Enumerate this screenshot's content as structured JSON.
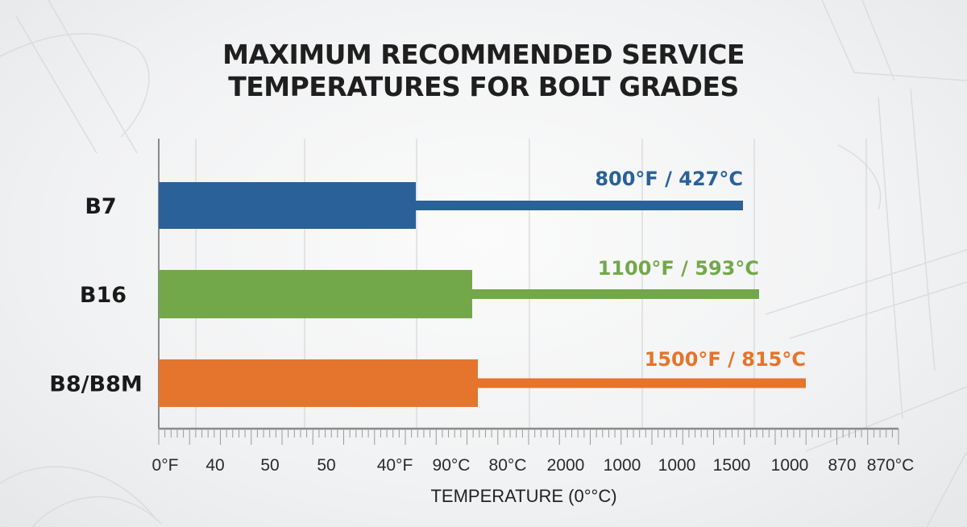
{
  "chart_data": {
    "type": "bar",
    "orientation": "horizontal",
    "title": "MAXIMUM RECOMMENDED SERVICE TEMPERATURES FOR BOLT GRADES",
    "title_lines": [
      "MAXIMUM RECOMMENDED SERVICE",
      "TEMPERATURES FOR BOLT GRADES"
    ],
    "categories": [
      "B7",
      "B16",
      "B8/B8M"
    ],
    "values_f": [
      800,
      1100,
      1500
    ],
    "values_c": [
      427,
      593,
      815
    ],
    "data_labels": [
      "800°F / 427°C",
      "1100°F / 593°C",
      "1500°F / 815°C"
    ],
    "colors": [
      "#2a6199",
      "#72a84a",
      "#e5742c"
    ],
    "xlabel": "TEMPERATURE (0°°C)",
    "x_tick_labels": [
      "0°F",
      "40",
      "50",
      "50",
      "40°F",
      "90°C",
      "80°C",
      "2000",
      "1000",
      "1000",
      "1500",
      "1000",
      "870",
      "870°C"
    ],
    "grid": true,
    "legend": "none"
  }
}
